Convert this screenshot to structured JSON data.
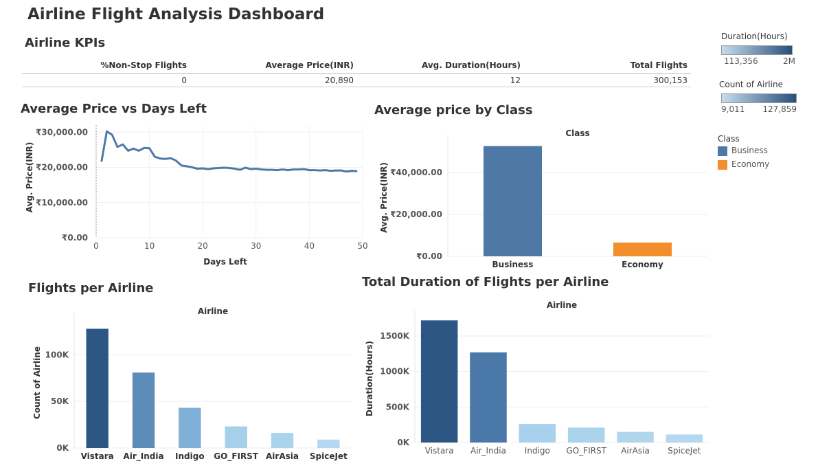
{
  "dashboard_title": "Airline Flight Analysis Dashboard",
  "kpis": {
    "title": "Airline KPIs",
    "columns": [
      {
        "label": "%Non-Stop Flights",
        "value": "0"
      },
      {
        "label": "Average Price(INR)",
        "value": "20,890"
      },
      {
        "label": "Avg. Duration(Hours)",
        "value": "12"
      },
      {
        "label": "Total Flights",
        "value": "300,153"
      }
    ]
  },
  "legends": {
    "duration": {
      "title": "Duration(Hours)",
      "min": "113,356",
      "max": "2M"
    },
    "count": {
      "title": "Count of Airline",
      "min": "9,011",
      "max": "127,859"
    },
    "class": {
      "title": "Class",
      "items": [
        {
          "label": "Business",
          "color": "#4e79a7"
        },
        {
          "label": "Economy",
          "color": "#f28e2b"
        }
      ]
    }
  },
  "chart_data": [
    {
      "type": "line",
      "title": "Average Price vs Days Left",
      "xlabel": "Days Left",
      "ylabel": "Avg. Price(INR)",
      "xlim": [
        0,
        50
      ],
      "ylim": [
        0,
        32000
      ],
      "x_ticks": [
        "0",
        "10",
        "20",
        "30",
        "40",
        "50"
      ],
      "y_ticks": [
        {
          "value": 0,
          "label": "₹0.00"
        },
        {
          "value": 10000,
          "label": "₹10,000.00"
        },
        {
          "value": 20000,
          "label": "₹20,000.00"
        },
        {
          "value": 30000,
          "label": "₹30,000.00"
        }
      ],
      "color": "#4e79a7",
      "x": [
        1,
        2,
        3,
        4,
        5,
        6,
        7,
        8,
        9,
        10,
        11,
        12,
        13,
        14,
        15,
        16,
        17,
        18,
        19,
        20,
        21,
        22,
        23,
        24,
        25,
        26,
        27,
        28,
        29,
        30,
        31,
        32,
        33,
        34,
        35,
        36,
        37,
        38,
        39,
        40,
        41,
        42,
        43,
        44,
        45,
        46,
        47,
        48,
        49
      ],
      "y": [
        21600,
        30200,
        29200,
        25800,
        26500,
        24700,
        25300,
        24700,
        25500,
        25400,
        23000,
        22500,
        22400,
        22600,
        21900,
        20500,
        20300,
        20000,
        19600,
        19700,
        19500,
        19700,
        19800,
        19900,
        19800,
        19600,
        19300,
        19900,
        19500,
        19600,
        19400,
        19300,
        19300,
        19200,
        19400,
        19200,
        19400,
        19400,
        19500,
        19200,
        19200,
        19100,
        19200,
        19000,
        19100,
        19100,
        18800,
        19000,
        18900
      ]
    },
    {
      "type": "bar",
      "title": "Average price by Class",
      "header": "Class",
      "ylabel": "Avg. Price(INR)",
      "ylim": [
        0,
        56000
      ],
      "y_ticks": [
        {
          "value": 0,
          "label": "₹0.00"
        },
        {
          "value": 20000,
          "label": "₹20,000.00"
        },
        {
          "value": 40000,
          "label": "₹40,000.00"
        }
      ],
      "categories": [
        "Business",
        "Economy"
      ],
      "values": [
        52540,
        6572
      ],
      "colors": [
        "#4e79a7",
        "#f28e2b"
      ]
    },
    {
      "type": "bar",
      "title": "Flights per Airline",
      "header": "Airline",
      "ylabel": "Count of Airline",
      "ylim": [
        0,
        140000
      ],
      "y_ticks": [
        {
          "value": 0,
          "label": "0K"
        },
        {
          "value": 50000,
          "label": "50K"
        },
        {
          "value": 100000,
          "label": "100K"
        }
      ],
      "categories": [
        "Vistara",
        "Air_India",
        "Indigo",
        "GO_FIRST",
        "AirAsia",
        "SpiceJet"
      ],
      "values": [
        127859,
        80892,
        43120,
        23173,
        16098,
        9011
      ],
      "colors": [
        "#2c5784",
        "#5b8db8",
        "#80afd7",
        "#a6cfe9",
        "#aad3ec",
        "#b3d8ef"
      ]
    },
    {
      "type": "bar",
      "title": "Total Duration of Flights per Airline",
      "header": "Airline",
      "ylabel": "Duration(Hours)",
      "ylim": [
        0,
        1800000
      ],
      "y_ticks": [
        {
          "value": 0,
          "label": "0K"
        },
        {
          "value": 500000,
          "label": "500K"
        },
        {
          "value": 1000000,
          "label": "1000K"
        },
        {
          "value": 1500000,
          "label": "1500K"
        }
      ],
      "categories": [
        "Vistara",
        "Air_India",
        "Indigo",
        "GO_FIRST",
        "AirAsia",
        "SpiceJet"
      ],
      "values": [
        1720000,
        1270000,
        260000,
        210000,
        150000,
        113356
      ],
      "colors": [
        "#2c5784",
        "#4a78a8",
        "#a9d0ec",
        "#aad3ec",
        "#b0d6ee",
        "#b3d8ef"
      ]
    }
  ]
}
